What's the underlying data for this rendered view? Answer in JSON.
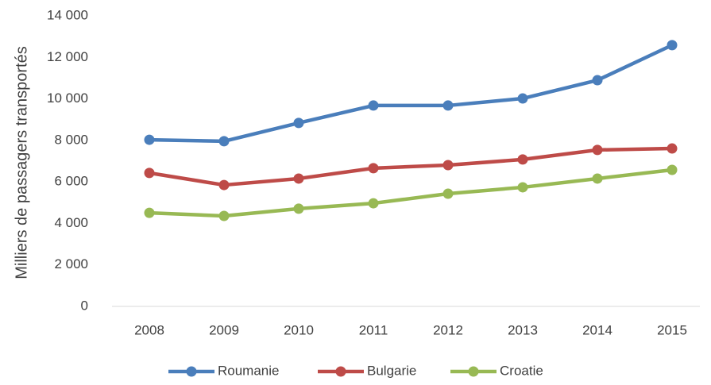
{
  "chart_data": {
    "type": "line",
    "y_label": "Milliers de passagers transportés",
    "categories": [
      "2008",
      "2009",
      "2010",
      "2011",
      "2012",
      "2013",
      "2014",
      "2015"
    ],
    "series": [
      {
        "name": "Roumanie",
        "color": "#4a7ebb",
        "values": [
          8030,
          7960,
          8840,
          9680,
          9680,
          10020,
          10900,
          12590
        ]
      },
      {
        "name": "Bulgarie",
        "color": "#be4b48",
        "values": [
          6430,
          5850,
          6160,
          6660,
          6810,
          7080,
          7540,
          7610
        ]
      },
      {
        "name": "Croatie",
        "color": "#98b954",
        "values": [
          4510,
          4360,
          4710,
          4970,
          5430,
          5740,
          6160,
          6580
        ]
      }
    ],
    "ylim": [
      0,
      14000
    ],
    "yticks": [
      0,
      {
        "value": 2000,
        "label": "2 000"
      },
      {
        "value": 4000,
        "label": "4 000"
      },
      {
        "value": 6000,
        "label": "6 000"
      },
      {
        "value": 8000,
        "label": "8 000"
      },
      {
        "value": 10000,
        "label": "10 000"
      },
      {
        "value": 12000,
        "label": "12 000"
      },
      {
        "value": 14000,
        "label": "14 000"
      }
    ],
    "grid": false,
    "legend": "bottom"
  }
}
